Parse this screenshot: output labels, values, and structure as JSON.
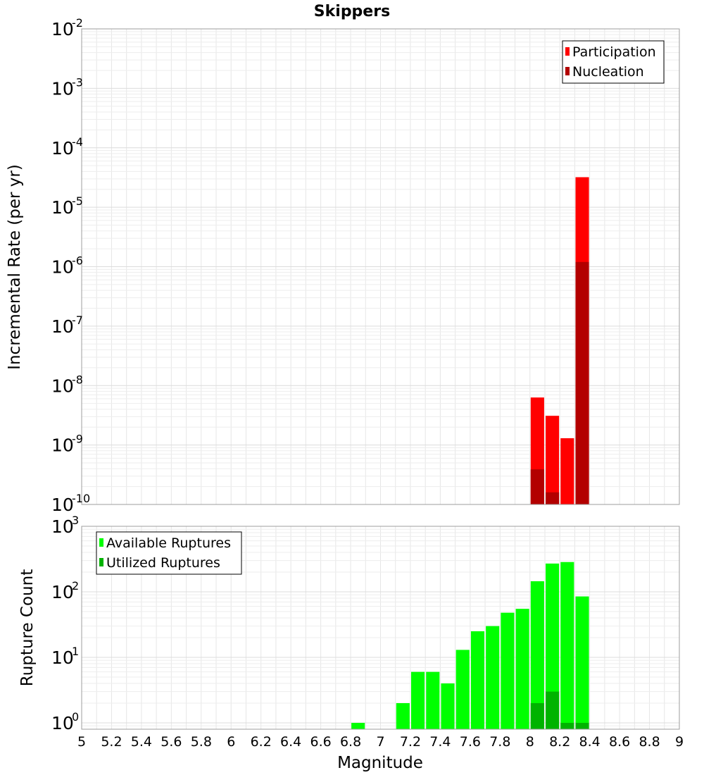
{
  "chart_data": [
    {
      "type": "bar",
      "panel": "top",
      "title": "Skippers",
      "ylabel": "Incremental Rate (per yr)",
      "yscale": "log",
      "ylim": [
        1e-10,
        0.01
      ],
      "xlim": [
        5,
        9
      ],
      "y_ticks": [
        {
          "base": "10",
          "exp": "-10"
        },
        {
          "base": "10",
          "exp": "-9"
        },
        {
          "base": "10",
          "exp": "-8"
        },
        {
          "base": "10",
          "exp": "-7"
        },
        {
          "base": "10",
          "exp": "-6"
        },
        {
          "base": "10",
          "exp": "-5"
        },
        {
          "base": "10",
          "exp": "-4"
        },
        {
          "base": "10",
          "exp": "-3"
        },
        {
          "base": "10",
          "exp": "-2"
        }
      ],
      "bar_width": 0.09,
      "legend_position": "top-right",
      "series": [
        {
          "name": "Participation",
          "color": "#ff0000",
          "x": [
            8.05,
            8.15,
            8.25,
            8.35
          ],
          "values": [
            6.3e-09,
            3.1e-09,
            1.3e-09,
            3.2e-05
          ]
        },
        {
          "name": "Nucleation",
          "color": "#b30000",
          "x": [
            8.05,
            8.15,
            8.35
          ],
          "values": [
            3.9e-10,
            1.6e-10,
            1.2e-06
          ]
        }
      ]
    },
    {
      "type": "bar",
      "panel": "bottom",
      "xlabel": "Magnitude",
      "ylabel": "Rupture Count",
      "yscale": "log",
      "ylim": [
        0.8,
        1000
      ],
      "xlim": [
        5,
        9
      ],
      "x_ticks": [
        "5",
        "5.2",
        "5.4",
        "5.6",
        "5.8",
        "6",
        "6.2",
        "6.4",
        "6.6",
        "6.8",
        "7",
        "7.2",
        "7.4",
        "7.6",
        "7.8",
        "8",
        "8.2",
        "8.4",
        "8.6",
        "8.8",
        "9"
      ],
      "y_ticks": [
        {
          "base": "10",
          "exp": "0"
        },
        {
          "base": "10",
          "exp": "1"
        },
        {
          "base": "10",
          "exp": "2"
        },
        {
          "base": "10",
          "exp": "3"
        }
      ],
      "bar_width": 0.09,
      "legend_position": "top-left",
      "series": [
        {
          "name": "Available Ruptures",
          "color": "#00ff00",
          "x": [
            6.85,
            7.15,
            7.25,
            7.35,
            7.45,
            7.55,
            7.65,
            7.75,
            7.85,
            7.95,
            8.05,
            8.15,
            8.25,
            8.35
          ],
          "values": [
            1,
            2,
            6,
            6,
            4,
            13,
            25,
            30,
            48,
            55,
            145,
            270,
            285,
            85
          ]
        },
        {
          "name": "Utilized Ruptures",
          "color": "#00b300",
          "x": [
            8.05,
            8.15,
            8.25,
            8.35
          ],
          "values": [
            2,
            3,
            1,
            1
          ]
        }
      ]
    }
  ]
}
